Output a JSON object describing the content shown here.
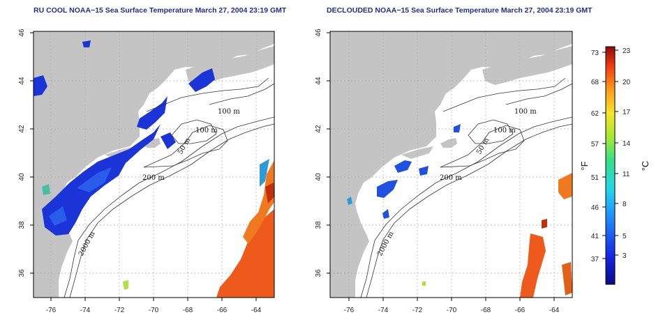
{
  "titles": {
    "left": "RU COOL NOAA−15 Sea Surface Temperature March 27, 2004 23:19 GMT",
    "right": "DECLOUDED NOAA−15 Sea Surface Temperature March 27, 2004 23:19 GMT"
  },
  "axes": {
    "lon_ticks": [
      "-76",
      "-74",
      "-72",
      "-70",
      "-68",
      "-66",
      "-64"
    ],
    "lat_ticks": [
      "46",
      "44",
      "42",
      "40",
      "38",
      "36"
    ]
  },
  "isobaths": {
    "label_100m_a": "100 m",
    "label_100m_b": "100 m",
    "label_200m": "200 m",
    "label_50m": "50 m",
    "label_2000m": "2000 m"
  },
  "colorbar": {
    "fahrenheit_unit": "°F",
    "celsius_unit": "°C",
    "fahrenheit_ticks": [
      "73",
      "68",
      "62",
      "57",
      "51",
      "46",
      "41",
      "37"
    ],
    "celsius_ticks": [
      "23",
      "20",
      "17",
      "14",
      "11",
      "8",
      "5",
      "3"
    ]
  },
  "colors": {
    "land": "#c4c4c4",
    "ocean": "#ffffff",
    "title": "#1d2f8c",
    "cold": "#1530d0",
    "warm": "#e8501c"
  }
}
